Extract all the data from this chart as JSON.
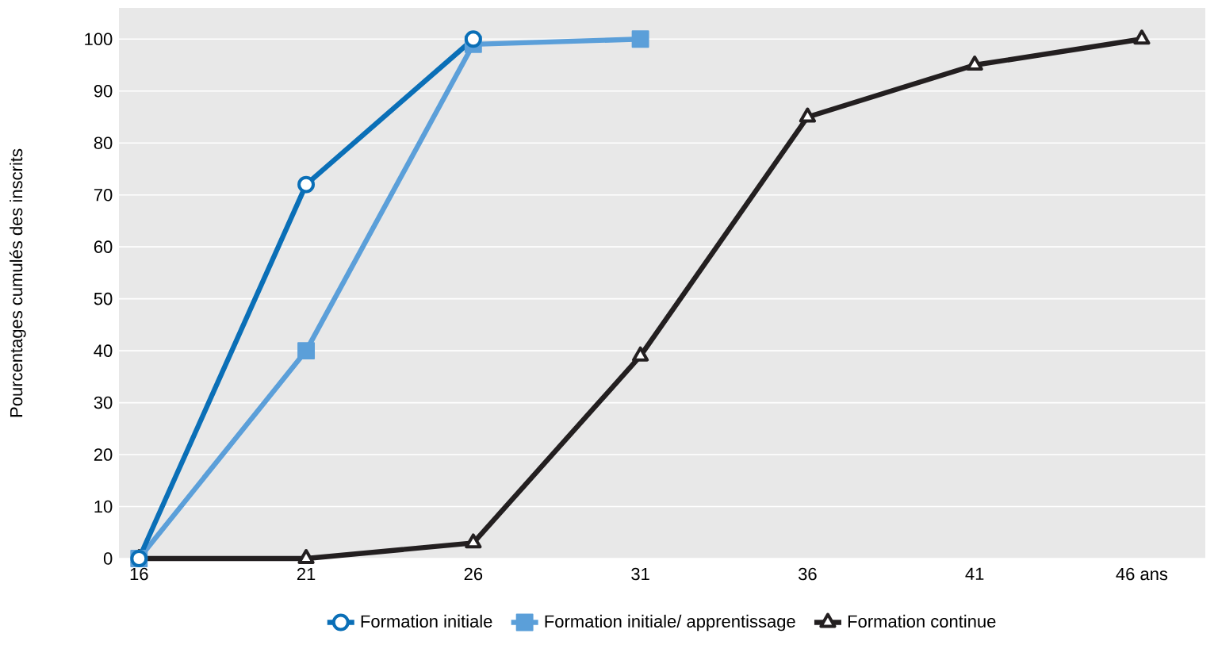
{
  "chart_data": {
    "type": "line",
    "ylabel": "Pourcentages cumulés des inscrits",
    "xlim": [
      15.4,
      47.9
    ],
    "ylim": [
      0,
      106
    ],
    "xticks": [
      16,
      21,
      26,
      31,
      36,
      41,
      {
        "value": 46,
        "label": "46 ans"
      }
    ],
    "yticks": [
      0,
      10,
      20,
      30,
      40,
      50,
      60,
      70,
      80,
      90,
      100
    ],
    "grid": "y",
    "legend": "bottom",
    "series": [
      {
        "name": "Formation initiale",
        "color": "#0a6fb7",
        "marker": "circle",
        "x": [
          16,
          21,
          26
        ],
        "values": [
          0,
          72,
          100
        ]
      },
      {
        "name": "Formation initiale/ apprentissage",
        "color": "#5b9fd9",
        "marker": "square",
        "x": [
          16,
          21,
          26,
          31
        ],
        "values": [
          0,
          40,
          99,
          100
        ]
      },
      {
        "name": "Formation continue",
        "color": "#231f20",
        "marker": "triangle",
        "x": [
          16,
          21,
          26,
          31,
          36,
          41,
          46
        ],
        "values": [
          0,
          0,
          3,
          39,
          85,
          95,
          100
        ]
      }
    ]
  }
}
